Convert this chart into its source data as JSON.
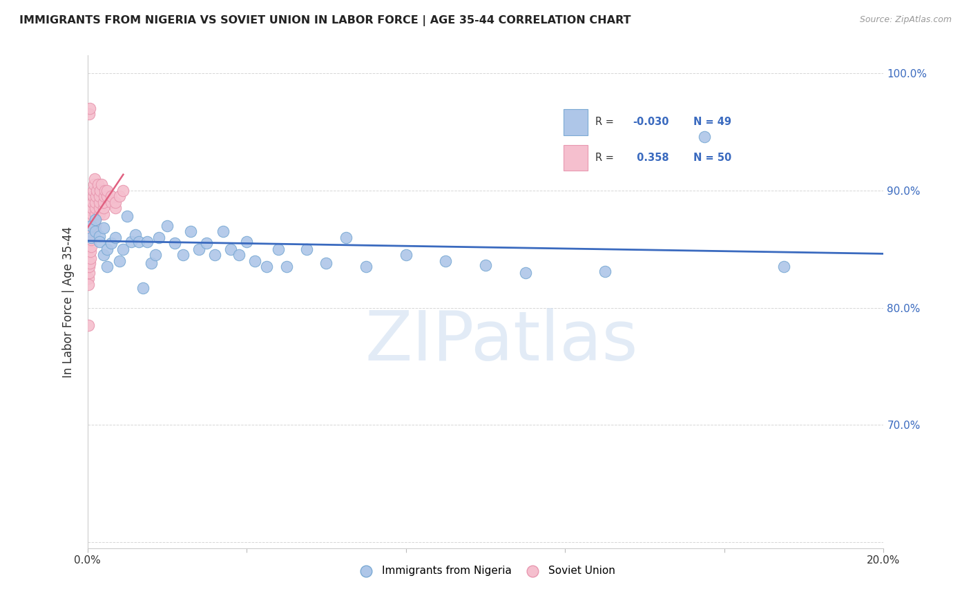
{
  "title": "IMMIGRANTS FROM NIGERIA VS SOVIET UNION IN LABOR FORCE | AGE 35-44 CORRELATION CHART",
  "source": "Source: ZipAtlas.com",
  "ylabel": "In Labor Force | Age 35-44",
  "xlim": [
    0.0,
    0.2
  ],
  "ylim": [
    0.595,
    1.015
  ],
  "xticks": [
    0.0,
    0.04,
    0.08,
    0.12,
    0.16,
    0.2
  ],
  "xticklabels": [
    "0.0%",
    "",
    "",
    "",
    "",
    "20.0%"
  ],
  "yticks": [
    0.6,
    0.7,
    0.8,
    0.9,
    1.0
  ],
  "yticklabels": [
    "",
    "70.0%",
    "80.0%",
    "90.0%",
    "100.0%"
  ],
  "nigeria_R": -0.03,
  "nigeria_N": 49,
  "soviet_R": 0.358,
  "soviet_N": 50,
  "nigeria_color": "#aec6e8",
  "nigeria_edge": "#7baad4",
  "soviet_color": "#f5bfce",
  "soviet_edge": "#e898b0",
  "nigeria_line_color": "#3a6abf",
  "soviet_line_color": "#e06080",
  "legend_nigeria_label": "Immigrants from Nigeria",
  "legend_soviet_label": "Soviet Union",
  "nigeria_x": [
    0.001,
    0.001,
    0.002,
    0.002,
    0.002,
    0.003,
    0.003,
    0.003,
    0.004,
    0.004,
    0.005,
    0.005,
    0.006,
    0.006,
    0.007,
    0.008,
    0.009,
    0.01,
    0.01,
    0.011,
    0.012,
    0.013,
    0.014,
    0.015,
    0.016,
    0.018,
    0.02,
    0.022,
    0.025,
    0.028,
    0.03,
    0.033,
    0.035,
    0.038,
    0.04,
    0.042,
    0.045,
    0.048,
    0.05,
    0.055,
    0.06,
    0.065,
    0.07,
    0.08,
    0.09,
    0.1,
    0.11,
    0.13,
    0.155
  ],
  "nigeria_y": [
    0.87,
    0.86,
    0.875,
    0.865,
    0.858,
    0.861,
    0.856,
    0.87,
    0.845,
    0.868,
    0.85,
    0.835,
    0.855,
    0.84,
    0.86,
    0.84,
    0.85,
    0.878,
    0.881,
    0.856,
    0.862,
    0.856,
    0.817,
    0.856,
    0.838,
    0.85,
    0.87,
    0.86,
    0.84,
    0.83,
    0.855,
    0.845,
    0.865,
    0.85,
    0.845,
    0.856,
    0.84,
    0.835,
    0.85,
    0.835,
    0.85,
    0.838,
    0.835,
    0.845,
    0.84,
    0.836,
    0.83,
    0.831,
    0.946
  ],
  "soviet_x": [
    0.0002,
    0.0003,
    0.0004,
    0.0005,
    0.0006,
    0.0007,
    0.0008,
    0.0009,
    0.001,
    0.001,
    0.001,
    0.001,
    0.001,
    0.0012,
    0.0013,
    0.0014,
    0.0015,
    0.0016,
    0.0018,
    0.002,
    0.002,
    0.002,
    0.002,
    0.002,
    0.0022,
    0.0024,
    0.0026,
    0.003,
    0.003,
    0.003,
    0.003,
    0.0032,
    0.0035,
    0.004,
    0.004,
    0.004,
    0.0042,
    0.0045,
    0.005,
    0.005,
    0.006,
    0.006,
    0.007,
    0.007,
    0.008,
    0.009,
    0.0005,
    0.0006,
    0.0007,
    0.0008
  ],
  "soviet_y": [
    0.82,
    0.825,
    0.83,
    0.835,
    0.84,
    0.845,
    0.85,
    0.855,
    0.86,
    0.865,
    0.87,
    0.875,
    0.88,
    0.885,
    0.89,
    0.895,
    0.9,
    0.905,
    0.91,
    0.87,
    0.875,
    0.88,
    0.885,
    0.89,
    0.895,
    0.9,
    0.905,
    0.88,
    0.885,
    0.89,
    0.895,
    0.9,
    0.905,
    0.88,
    0.885,
    0.89,
    0.895,
    0.9,
    0.895,
    0.9,
    0.89,
    0.895,
    0.885,
    0.89,
    0.895,
    0.9,
    0.96,
    0.965,
    0.97,
    0.975
  ],
  "watermark": "ZIPatlas",
  "watermark_color": "#d0dff0",
  "background_color": "#ffffff",
  "grid_color": "#cccccc"
}
